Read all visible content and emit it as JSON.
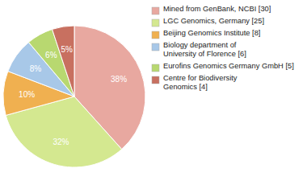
{
  "chart_data": {
    "type": "pie",
    "categories": [
      "Mined from GenBank, NCBI [30]",
      "LGC Genomics, Germany [25]",
      "Beijing Genomics Institute [8]",
      "Biology department of\nUniversity of Florence [6]",
      "Eurofins Genomics Germany GmbH [5]",
      "Centre for Biodiversity\nGenomics [4]"
    ],
    "values": [
      38,
      32,
      10,
      8,
      6,
      5
    ],
    "value_labels": [
      "38%",
      "32%",
      "10%",
      "8%",
      "6%",
      "5%"
    ],
    "colors": [
      "#e8a8a0",
      "#d4e890",
      "#f0b050",
      "#a8c8e8",
      "#b8d870",
      "#c87060"
    ],
    "data_labels": true,
    "legend": "upper right"
  }
}
